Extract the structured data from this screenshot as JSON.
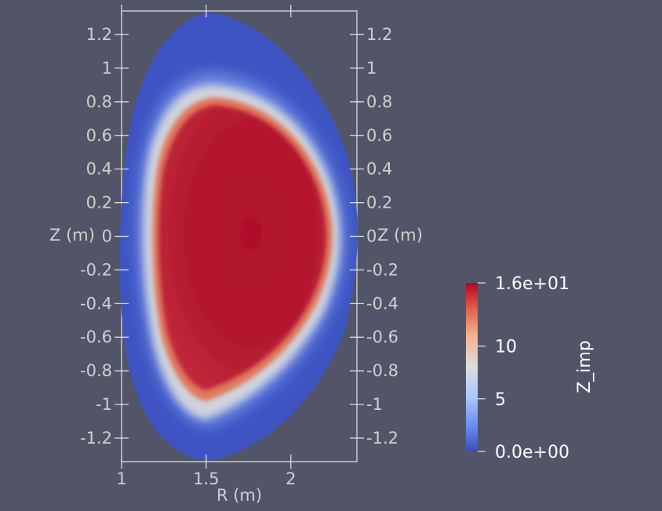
{
  "chart_data": {
    "type": "heatmap",
    "xlabel": "R (m)",
    "ylabel": "Z (m)",
    "x_ticks": [
      "1",
      "1.5",
      "2"
    ],
    "x_tick_values": [
      1,
      1.5,
      2
    ],
    "y_ticks": [
      "1.2",
      "1",
      "0.8",
      "0.6",
      "0.4",
      "0.2",
      "0",
      "-0.2",
      "-0.4",
      "-0.6",
      "-0.8",
      "-1",
      "-1.2"
    ],
    "y_tick_values": [
      1.2,
      1,
      0.8,
      0.6,
      0.4,
      0.2,
      0,
      -0.2,
      -0.4,
      -0.6,
      -0.8,
      -1,
      -1.2
    ],
    "xlim": [
      1.0,
      2.39
    ],
    "ylim": [
      -1.34,
      1.34
    ],
    "field": "Z_imp",
    "colorbar": {
      "title": "Z_imp",
      "range": [
        0,
        16
      ],
      "tick_labels": [
        "1.6e+01",
        "10",
        "5",
        "0.0e+00"
      ],
      "tick_values": [
        16,
        10,
        5,
        0
      ],
      "colormap": "cool-to-warm",
      "colors": [
        "#3b4cc0",
        "#dddddd",
        "#b40426"
      ]
    },
    "field_levels": {
      "edge": 0,
      "pedestal": 8,
      "core_max": 16
    }
  }
}
